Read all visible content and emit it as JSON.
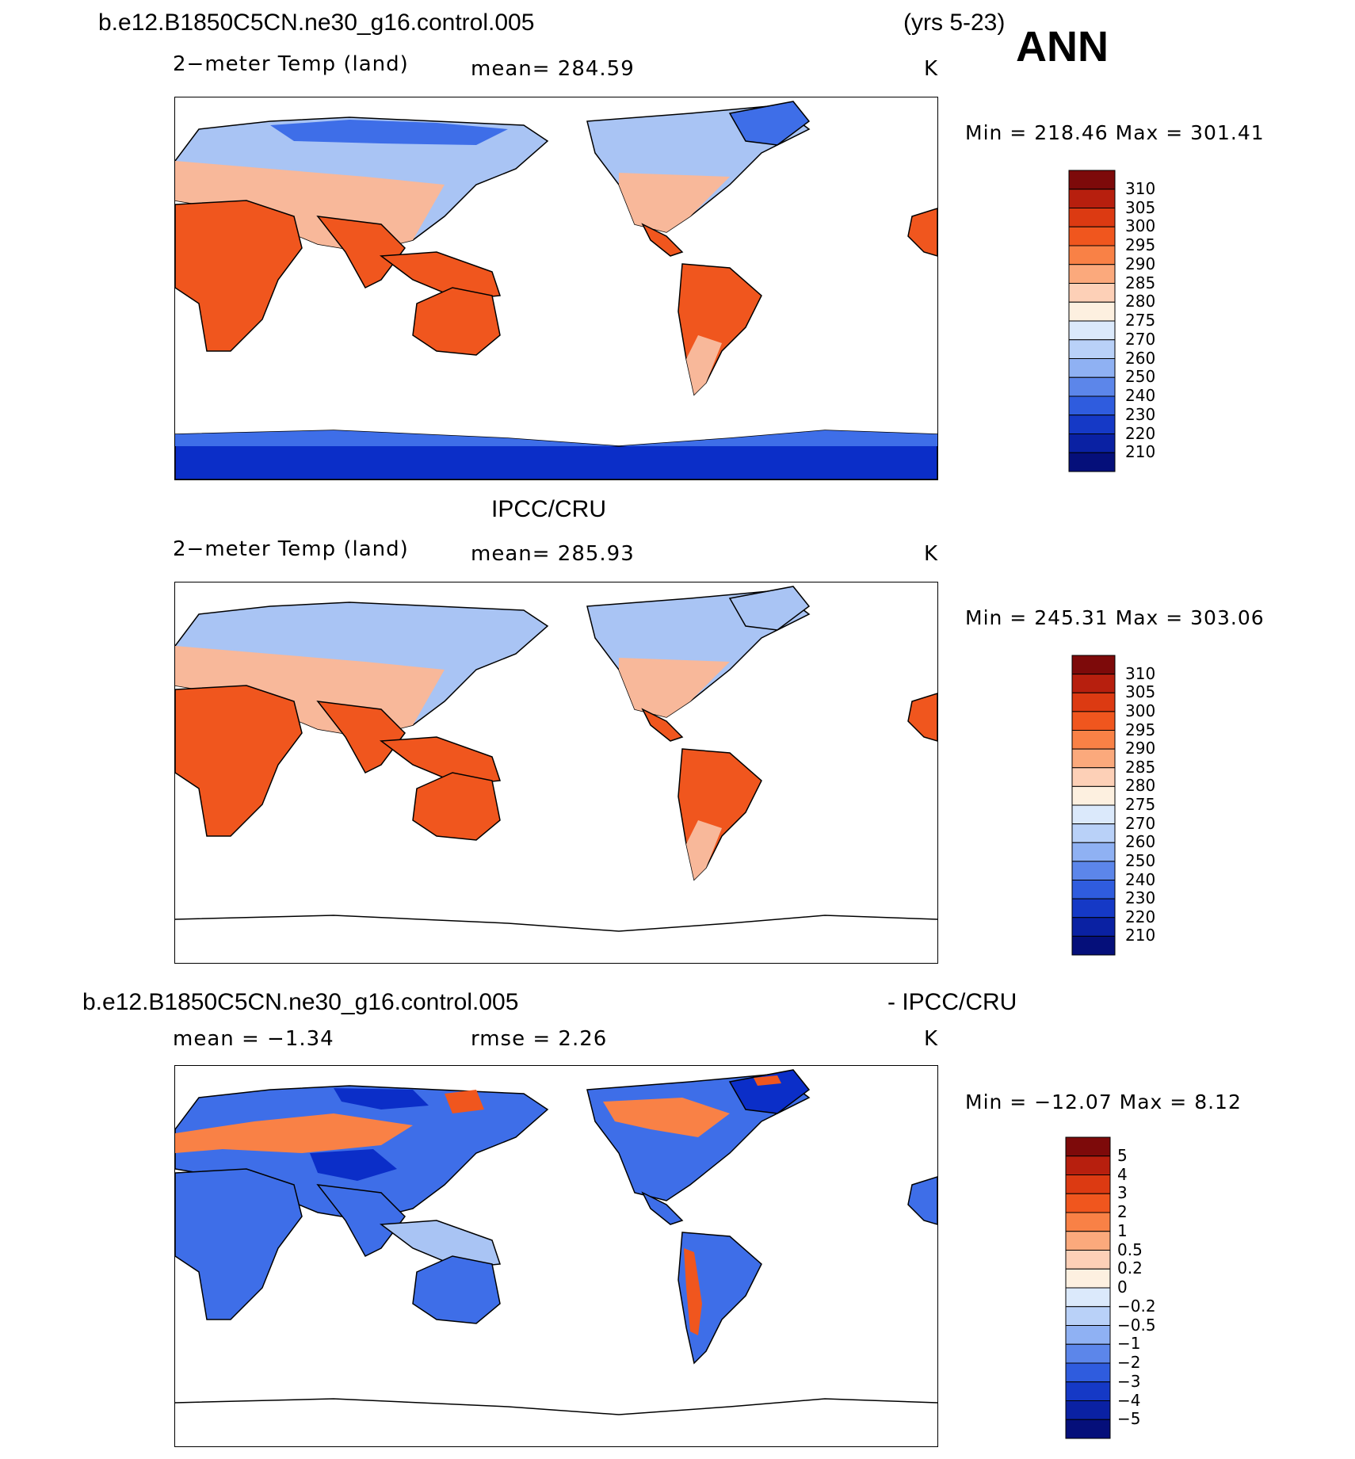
{
  "header": {
    "case_name": "b.e12.B1850C5CN.ne30_g16.control.005",
    "years": "(yrs 5-23)",
    "season": "ANN"
  },
  "colors": {
    "land_blue_deep": "#0b2ec8",
    "land_blue_mid": "#3e6ee8",
    "land_blue_light": "#a9c4f4",
    "land_orange": "#f0561e",
    "land_peach": "#f8b89a"
  },
  "chart_data": [
    {
      "type": "heatmap",
      "title": "b.e12.B1850C5CN.ne30_g16.control.005",
      "variable": "2−meter Temp (land)",
      "mean": "mean=  284.59",
      "units": "K",
      "minmax": "Min  =  218.46  Max  =  301.41",
      "colorbar_labels": [
        "310",
        "305",
        "300",
        "295",
        "290",
        "285",
        "280",
        "275",
        "270",
        "260",
        "250",
        "240",
        "230",
        "220",
        "210"
      ],
      "colorbar_colors": [
        "#7d0a0a",
        "#b71f0e",
        "#dc3a12",
        "#f0561e",
        "#f98146",
        "#fba97c",
        "#fdd0b7",
        "#fdf0e0",
        "#dbe9fb",
        "#b9d1f8",
        "#8fb1f3",
        "#5c86ea",
        "#2f5cde",
        "#1539c6",
        "#0a21a3",
        "#050f7a"
      ]
    },
    {
      "type": "heatmap",
      "title": "IPCC/CRU",
      "variable": "2−meter Temp (land)",
      "mean": "mean=  285.93",
      "units": "K",
      "minmax": "Min  =  245.31  Max  =  303.06",
      "colorbar_labels": [
        "310",
        "305",
        "300",
        "295",
        "290",
        "285",
        "280",
        "275",
        "270",
        "260",
        "250",
        "240",
        "230",
        "220",
        "210"
      ],
      "colorbar_colors": [
        "#7d0a0a",
        "#b71f0e",
        "#dc3a12",
        "#f0561e",
        "#f98146",
        "#fba97c",
        "#fdd0b7",
        "#fdf0e0",
        "#dbe9fb",
        "#b9d1f8",
        "#8fb1f3",
        "#5c86ea",
        "#2f5cde",
        "#1539c6",
        "#0a21a3",
        "#050f7a"
      ]
    },
    {
      "type": "heatmap",
      "title_left": "b.e12.B1850C5CN.ne30_g16.control.005",
      "title_right": "- IPCC/CRU",
      "mean": "mean  =    −1.34",
      "rmse": "rmse  =      2.26",
      "units": "K",
      "minmax": "Min  =  −12.07  Max  =      8.12",
      "colorbar_labels": [
        "5",
        "4",
        "3",
        "2",
        "1",
        "0.5",
        "0.2",
        "0",
        "−0.2",
        "−0.5",
        "−1",
        "−2",
        "−3",
        "−4",
        "−5"
      ],
      "colorbar_colors": [
        "#7d0a0a",
        "#b71f0e",
        "#dc3a12",
        "#f0561e",
        "#f98146",
        "#fba97c",
        "#fdd0b7",
        "#fdf0e0",
        "#dbe9fb",
        "#b9d1f8",
        "#8fb1f3",
        "#5c86ea",
        "#2f5cde",
        "#1539c6",
        "#0a21a3",
        "#050f7a"
      ]
    }
  ]
}
